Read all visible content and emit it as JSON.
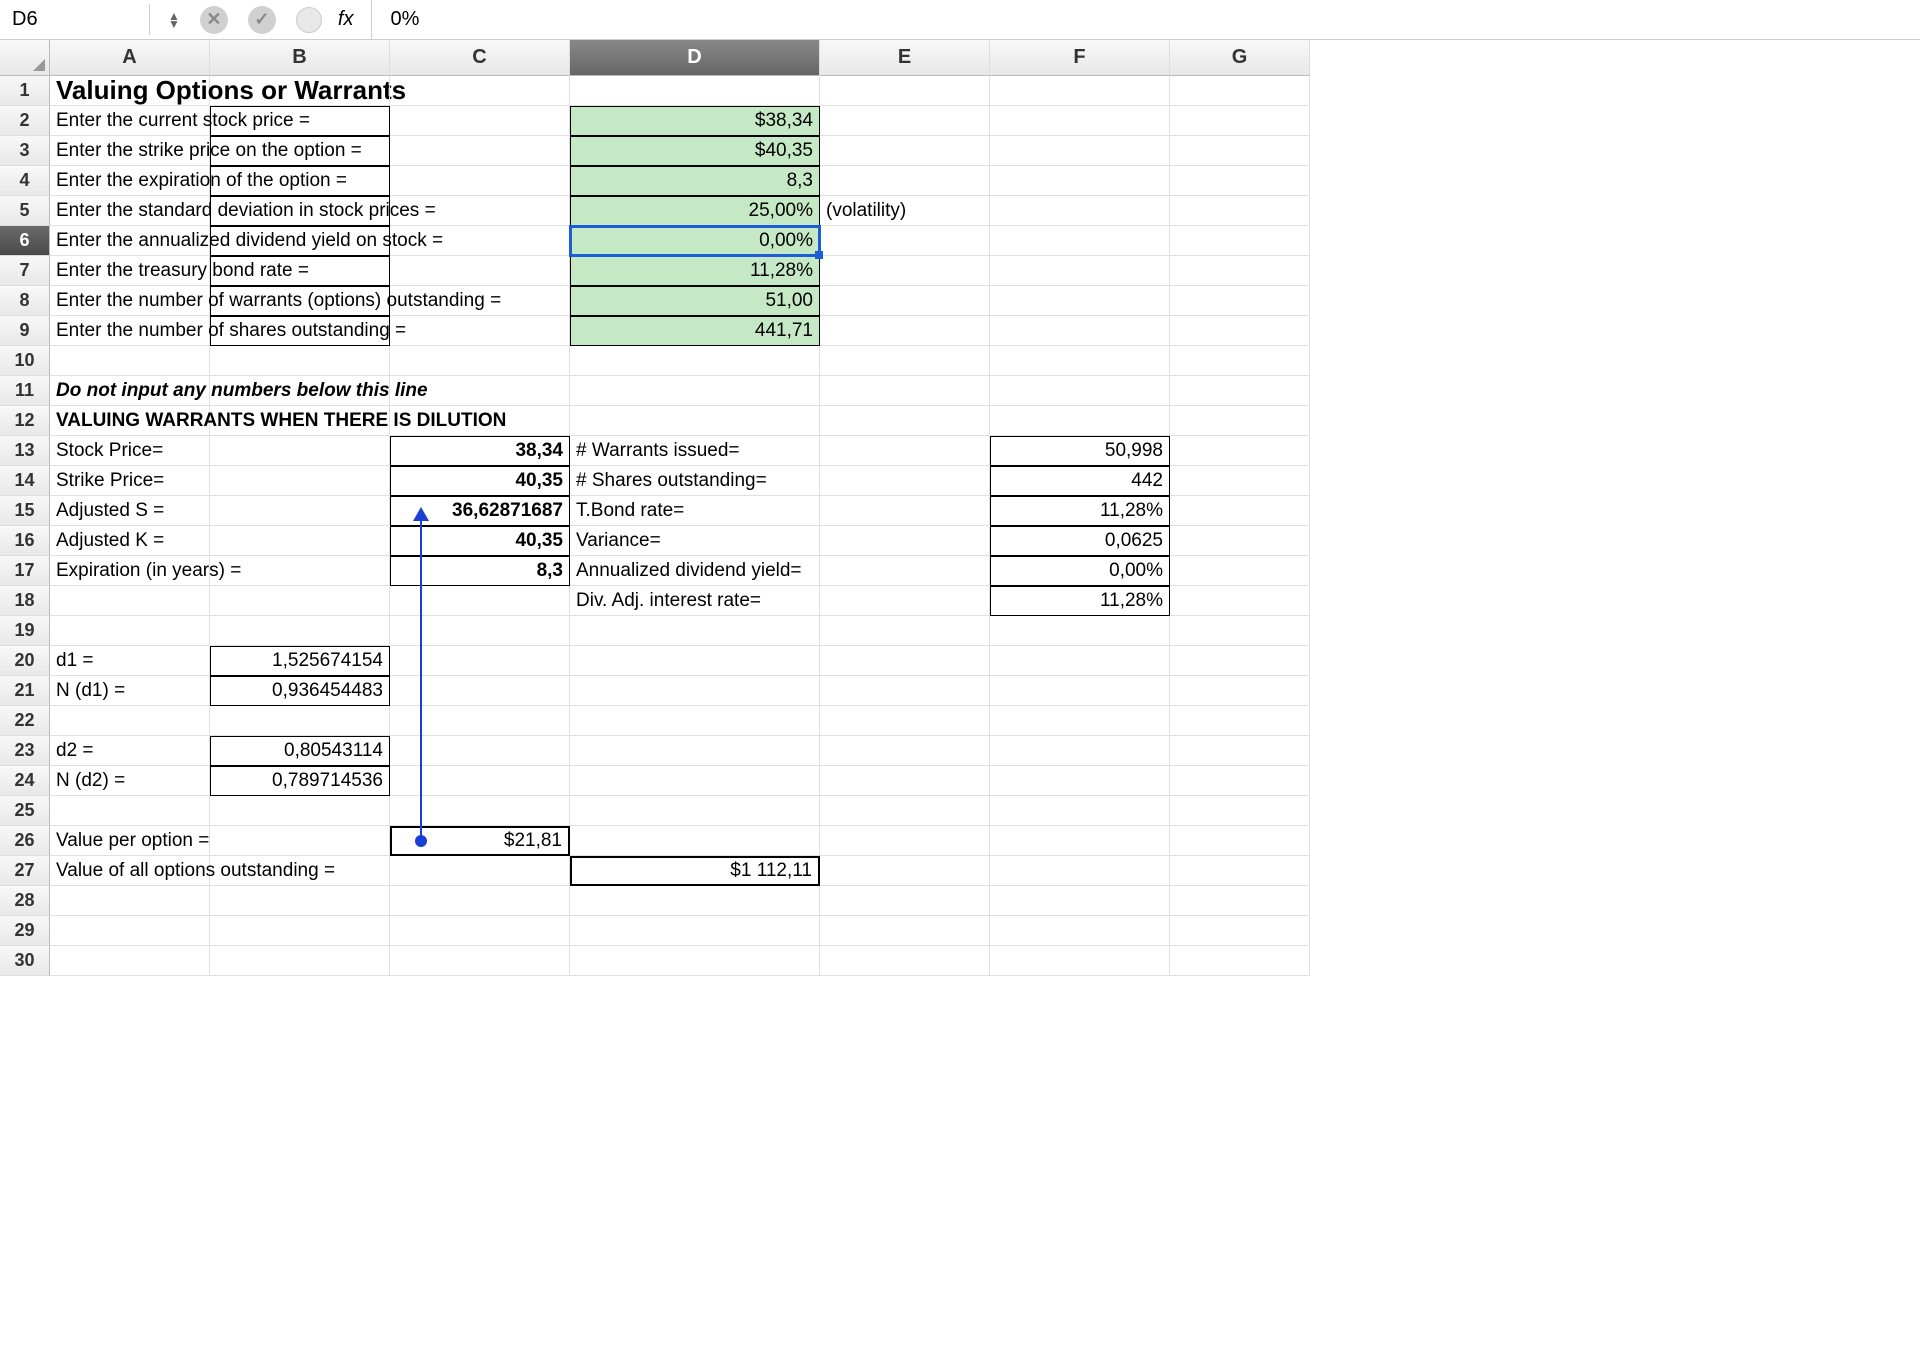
{
  "formula_bar": {
    "name_box": "D6",
    "fx_label": "fx",
    "value": "0%"
  },
  "columns": [
    "A",
    "B",
    "C",
    "D",
    "E",
    "F",
    "G"
  ],
  "col_widths": {
    "A": 160,
    "B": 180,
    "C": 180,
    "D": 250,
    "E": 170,
    "F": 180,
    "G": 140
  },
  "selected_col": "D",
  "selected_row": 6,
  "row_count": 30,
  "title": "Valuing Options or Warrants",
  "inputs": [
    {
      "row": 2,
      "label": "Enter the current stock price =",
      "value": "$38,34"
    },
    {
      "row": 3,
      "label": "Enter the strike price on the option =",
      "value": "$40,35"
    },
    {
      "row": 4,
      "label": "Enter the expiration of the option =",
      "value": "8,3"
    },
    {
      "row": 5,
      "label": "Enter the standard deviation in stock prices =",
      "value": "25,00%",
      "note": "(volatility)"
    },
    {
      "row": 6,
      "label": "Enter the annualized dividend yield on stock =",
      "value": "0,00%"
    },
    {
      "row": 7,
      "label": "Enter the treasury bond rate =",
      "value": "11,28%"
    },
    {
      "row": 8,
      "label": "Enter the number of warrants (options) outstanding =",
      "value": "51,00"
    },
    {
      "row": 9,
      "label": "Enter the number of shares outstanding =",
      "value": "441,71"
    }
  ],
  "note_row11": "Do not input any numbers below this line",
  "section_header": "VALUING WARRANTS WHEN THERE IS DILUTION",
  "calc_left": [
    {
      "row": 13,
      "label": "Stock Price=",
      "c": "38,34"
    },
    {
      "row": 14,
      "label": "Strike Price=",
      "c": "40,35"
    },
    {
      "row": 15,
      "label": "Adjusted S =",
      "c": "36,62871687"
    },
    {
      "row": 16,
      "label": "Adjusted K =",
      "c": "40,35"
    },
    {
      "row": 17,
      "label": "Expiration (in years) =",
      "c": "8,3"
    }
  ],
  "calc_right": [
    {
      "row": 13,
      "d": "# Warrants issued=",
      "f": "50,998"
    },
    {
      "row": 14,
      "d": "# Shares outstanding=",
      "f": "442"
    },
    {
      "row": 15,
      "d": "T.Bond rate=",
      "f": "11,28%"
    },
    {
      "row": 16,
      "d": "Variance=",
      "f": "0,0625"
    },
    {
      "row": 17,
      "d": "Annualized dividend yield=",
      "f": "0,00%"
    },
    {
      "row": 18,
      "d": "Div. Adj. interest rate=",
      "f": "11,28%"
    }
  ],
  "d_section": [
    {
      "row": 20,
      "label": "d1 =",
      "b": "1,525674154"
    },
    {
      "row": 21,
      "label": "N (d1) =",
      "b": "0,936454483"
    },
    {
      "row": 23,
      "label": "d2 =",
      "b": "0,80543114"
    },
    {
      "row": 24,
      "label": "N (d2) =",
      "b": "0,789714536"
    }
  ],
  "results": {
    "row26_label": "Value per option =",
    "row26_c": "$21,81",
    "row27_label": "Value of all options outstanding =",
    "row27_d": "$1 112,11"
  },
  "colors": {
    "green_bg": "#c5e8c5",
    "selection": "#1a5fd6",
    "trace": "#1a3fd6"
  }
}
